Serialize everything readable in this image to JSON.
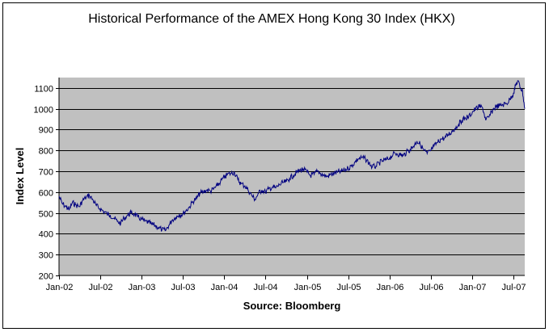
{
  "chart_data": {
    "type": "line",
    "title": "Historical Performance of the AMEX Hong Kong 30 Index (HKX)",
    "xlabel": "Source: Bloomberg",
    "ylabel": "Index Level",
    "ylim": [
      200,
      1150
    ],
    "yticks": [
      200,
      300,
      400,
      500,
      600,
      700,
      800,
      900,
      1000,
      1100
    ],
    "xlim": [
      "2002-01-01",
      "2007-08-20"
    ],
    "xticks": [
      {
        "date": "2002-01-01",
        "label": "Jan-02"
      },
      {
        "date": "2002-07-01",
        "label": "Jul-02"
      },
      {
        "date": "2003-01-01",
        "label": "Jan-03"
      },
      {
        "date": "2003-07-01",
        "label": "Jul-03"
      },
      {
        "date": "2004-01-01",
        "label": "Jan-04"
      },
      {
        "date": "2004-07-01",
        "label": "Jul-04"
      },
      {
        "date": "2005-01-01",
        "label": "Jan-05"
      },
      {
        "date": "2005-07-01",
        "label": "Jul-05"
      },
      {
        "date": "2006-01-01",
        "label": "Jan-06"
      },
      {
        "date": "2006-07-01",
        "label": "Jul-06"
      },
      {
        "date": "2007-01-01",
        "label": "Jan-07"
      },
      {
        "date": "2007-07-01",
        "label": "Jul-07"
      }
    ],
    "grid": true,
    "colors": {
      "line": "#000080",
      "plot_background": "#c0c0c0",
      "gridline": "#000000"
    },
    "series": [
      {
        "points": [
          [
            "2002-01-01",
            580
          ],
          [
            "2002-01-15",
            545
          ],
          [
            "2002-02-01",
            530
          ],
          [
            "2002-02-15",
            515
          ],
          [
            "2002-03-01",
            550
          ],
          [
            "2002-03-15",
            540
          ],
          [
            "2002-04-01",
            530
          ],
          [
            "2002-04-15",
            560
          ],
          [
            "2002-05-01",
            575
          ],
          [
            "2002-05-15",
            585
          ],
          [
            "2002-06-01",
            560
          ],
          [
            "2002-06-15",
            535
          ],
          [
            "2002-07-01",
            520
          ],
          [
            "2002-07-15",
            510
          ],
          [
            "2002-08-01",
            495
          ],
          [
            "2002-08-15",
            490
          ],
          [
            "2002-09-01",
            475
          ],
          [
            "2002-09-15",
            460
          ],
          [
            "2002-10-01",
            450
          ],
          [
            "2002-10-15",
            475
          ],
          [
            "2002-11-01",
            490
          ],
          [
            "2002-11-15",
            500
          ],
          [
            "2002-12-01",
            495
          ],
          [
            "2002-12-15",
            480
          ],
          [
            "2003-01-01",
            470
          ],
          [
            "2003-01-15",
            460
          ],
          [
            "2003-02-01",
            455
          ],
          [
            "2003-02-15",
            445
          ],
          [
            "2003-03-01",
            440
          ],
          [
            "2003-03-15",
            430
          ],
          [
            "2003-04-01",
            420
          ],
          [
            "2003-04-15",
            415
          ],
          [
            "2003-05-01",
            440
          ],
          [
            "2003-05-15",
            465
          ],
          [
            "2003-06-01",
            480
          ],
          [
            "2003-06-15",
            490
          ],
          [
            "2003-07-01",
            495
          ],
          [
            "2003-07-15",
            510
          ],
          [
            "2003-08-01",
            530
          ],
          [
            "2003-08-15",
            555
          ],
          [
            "2003-09-01",
            570
          ],
          [
            "2003-09-15",
            595
          ],
          [
            "2003-10-01",
            600
          ],
          [
            "2003-10-15",
            610
          ],
          [
            "2003-11-01",
            605
          ],
          [
            "2003-11-15",
            615
          ],
          [
            "2003-12-01",
            630
          ],
          [
            "2003-12-15",
            650
          ],
          [
            "2004-01-01",
            670
          ],
          [
            "2004-01-15",
            685
          ],
          [
            "2004-02-01",
            690
          ],
          [
            "2004-02-15",
            695
          ],
          [
            "2004-03-01",
            660
          ],
          [
            "2004-03-15",
            640
          ],
          [
            "2004-04-01",
            630
          ],
          [
            "2004-04-15",
            610
          ],
          [
            "2004-05-01",
            585
          ],
          [
            "2004-05-15",
            565
          ],
          [
            "2004-06-01",
            595
          ],
          [
            "2004-06-15",
            610
          ],
          [
            "2004-07-01",
            600
          ],
          [
            "2004-07-15",
            615
          ],
          [
            "2004-08-01",
            625
          ],
          [
            "2004-08-15",
            620
          ],
          [
            "2004-09-01",
            635
          ],
          [
            "2004-09-15",
            645
          ],
          [
            "2004-10-01",
            650
          ],
          [
            "2004-10-15",
            665
          ],
          [
            "2004-11-01",
            680
          ],
          [
            "2004-11-15",
            695
          ],
          [
            "2004-12-01",
            705
          ],
          [
            "2004-12-15",
            710
          ],
          [
            "2005-01-01",
            695
          ],
          [
            "2005-01-15",
            680
          ],
          [
            "2005-02-01",
            685
          ],
          [
            "2005-02-15",
            700
          ],
          [
            "2005-03-01",
            690
          ],
          [
            "2005-03-15",
            680
          ],
          [
            "2005-04-01",
            675
          ],
          [
            "2005-04-15",
            685
          ],
          [
            "2005-05-01",
            690
          ],
          [
            "2005-05-15",
            695
          ],
          [
            "2005-06-01",
            700
          ],
          [
            "2005-06-15",
            705
          ],
          [
            "2005-07-01",
            715
          ],
          [
            "2005-07-15",
            725
          ],
          [
            "2005-08-01",
            745
          ],
          [
            "2005-08-15",
            760
          ],
          [
            "2005-09-01",
            765
          ],
          [
            "2005-09-15",
            760
          ],
          [
            "2005-10-01",
            740
          ],
          [
            "2005-10-15",
            720
          ],
          [
            "2005-11-01",
            725
          ],
          [
            "2005-11-15",
            740
          ],
          [
            "2005-12-01",
            750
          ],
          [
            "2005-12-15",
            755
          ],
          [
            "2006-01-01",
            765
          ],
          [
            "2006-01-15",
            780
          ],
          [
            "2006-02-01",
            785
          ],
          [
            "2006-02-15",
            780
          ],
          [
            "2006-03-01",
            775
          ],
          [
            "2006-03-15",
            790
          ],
          [
            "2006-04-01",
            805
          ],
          [
            "2006-04-15",
            820
          ],
          [
            "2006-05-01",
            845
          ],
          [
            "2006-05-15",
            830
          ],
          [
            "2006-06-01",
            800
          ],
          [
            "2006-06-15",
            785
          ],
          [
            "2006-07-01",
            800
          ],
          [
            "2006-07-15",
            820
          ],
          [
            "2006-08-01",
            840
          ],
          [
            "2006-08-15",
            855
          ],
          [
            "2006-09-01",
            860
          ],
          [
            "2006-09-15",
            875
          ],
          [
            "2006-10-01",
            890
          ],
          [
            "2006-10-15",
            905
          ],
          [
            "2006-11-01",
            925
          ],
          [
            "2006-11-15",
            945
          ],
          [
            "2006-12-01",
            955
          ],
          [
            "2006-12-15",
            960
          ],
          [
            "2007-01-01",
            985
          ],
          [
            "2007-01-15",
            1000
          ],
          [
            "2007-02-01",
            1010
          ],
          [
            "2007-02-15",
            1005
          ],
          [
            "2007-03-01",
            945
          ],
          [
            "2007-03-15",
            960
          ],
          [
            "2007-04-01",
            995
          ],
          [
            "2007-04-15",
            1010
          ],
          [
            "2007-05-01",
            1015
          ],
          [
            "2007-05-15",
            1020
          ],
          [
            "2007-06-01",
            1025
          ],
          [
            "2007-06-15",
            1045
          ],
          [
            "2007-07-01",
            1075
          ],
          [
            "2007-07-10",
            1110
          ],
          [
            "2007-07-20",
            1135
          ],
          [
            "2007-08-01",
            1100
          ],
          [
            "2007-08-10",
            1085
          ],
          [
            "2007-08-20",
            1000
          ]
        ]
      }
    ]
  }
}
